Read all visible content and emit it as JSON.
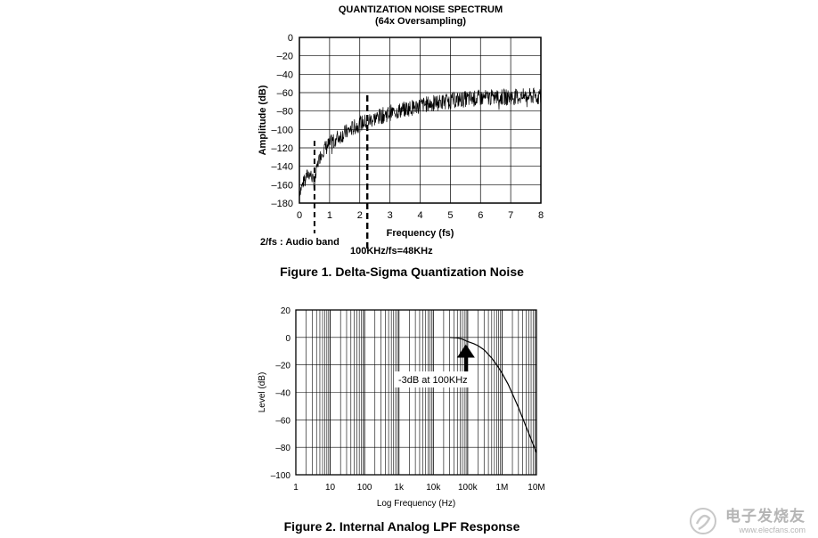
{
  "chart_data": [
    {
      "type": "line",
      "title": "QUANTIZATION NOISE SPECTRUM",
      "subtitle": "(64x Oversampling)",
      "xlabel": "Frequency (fs)",
      "ylabel": "Amplitude (dB)",
      "xlim": [
        0,
        8
      ],
      "ylim": [
        -180,
        0
      ],
      "x_ticks": [
        "0",
        "1",
        "2",
        "3",
        "4",
        "5",
        "6",
        "7",
        "8"
      ],
      "y_ticks": [
        "0",
        "–20",
        "–40",
        "–60",
        "–80",
        "–100",
        "–120",
        "–140",
        "–160",
        "–180"
      ],
      "grid": true,
      "series": [
        {
          "name": "Quantization noise",
          "x": [
            0,
            0.1,
            0.2,
            0.3,
            0.4,
            0.5,
            0.6,
            0.7,
            0.8,
            1.0,
            1.2,
            1.5,
            1.8,
            2.0,
            2.5,
            3.0,
            3.5,
            4.0,
            4.5,
            5.0,
            5.5,
            6.0,
            6.5,
            7.0,
            7.5,
            8.0
          ],
          "values": [
            -168,
            -160,
            -152,
            -148,
            -150,
            -160,
            -138,
            -128,
            -122,
            -116,
            -110,
            -104,
            -98,
            -94,
            -88,
            -82,
            -78,
            -74,
            -71,
            -69,
            -67,
            -66,
            -65,
            -65,
            -64,
            -64
          ]
        }
      ],
      "annotations": [
        {
          "x": 0.5,
          "label": "2/fs : Audio band"
        },
        {
          "x": 2.25,
          "label": "100KHz/fs=48KHz"
        }
      ],
      "caption": "Figure 1. Delta-Sigma Quantization Noise"
    },
    {
      "type": "line",
      "title": "",
      "xlabel": "Log Frequency (Hz)",
      "ylabel": "Level (dB)",
      "xscale": "log",
      "xlim": [
        1,
        10000000
      ],
      "ylim": [
        -100,
        20
      ],
      "x_ticks": [
        "1",
        "10",
        "100",
        "1k",
        "10k",
        "100k",
        "1M",
        "10M"
      ],
      "y_ticks": [
        "20",
        "0",
        "–20",
        "–40",
        "–60",
        "–80",
        "–100"
      ],
      "grid": true,
      "series": [
        {
          "name": "LPF response",
          "x": [
            30000,
            50000,
            70000,
            100000,
            150000,
            200000,
            300000,
            500000,
            700000,
            1000000,
            1500000,
            2000000,
            3000000,
            5000000,
            7000000,
            10000000
          ],
          "values": [
            0,
            -0.3,
            -1.2,
            -3,
            -4.5,
            -6,
            -9,
            -15,
            -20,
            -26,
            -34,
            -41,
            -51,
            -65,
            -74,
            -84
          ]
        }
      ],
      "annotations": [
        {
          "x": 100000,
          "y": -3,
          "label": "-3dB at 100KHz"
        }
      ],
      "caption": "Figure 2. Internal Analog LPF Response"
    }
  ],
  "watermark": {
    "text_cn": "电子发烧友",
    "url": "www.elecfans.com"
  }
}
